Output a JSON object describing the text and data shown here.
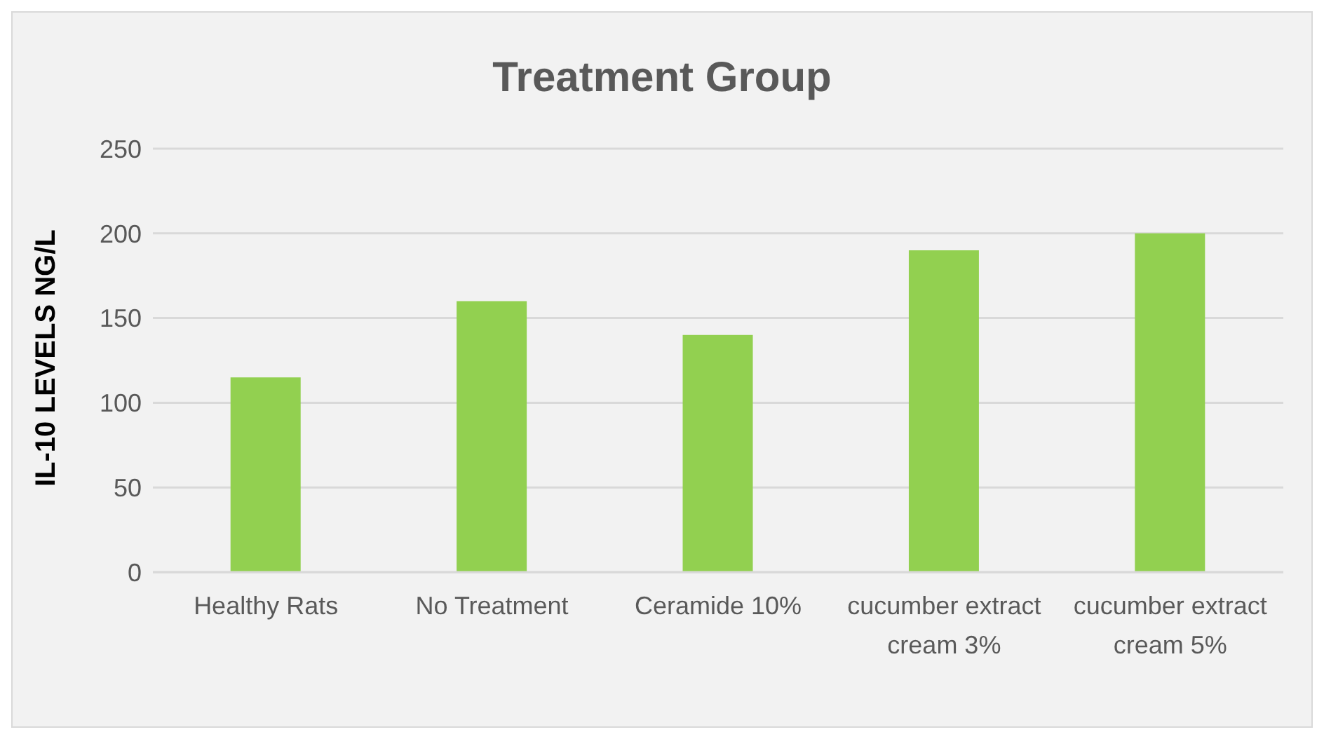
{
  "chart_data": {
    "type": "bar",
    "title": "Treatment Group",
    "ylabel": "IL-10 LEVELS NG/L",
    "categories": [
      "Healthy Rats",
      "No Treatment",
      "Ceramide 10%",
      "cucumber extract cream 3%",
      "cucumber extract cream 5%"
    ],
    "values": [
      115,
      160,
      140,
      190,
      200
    ],
    "color": "#92d050",
    "ylim": [
      0,
      250
    ],
    "yticks": [
      0,
      50,
      100,
      150,
      200,
      250
    ],
    "grid": "y"
  }
}
